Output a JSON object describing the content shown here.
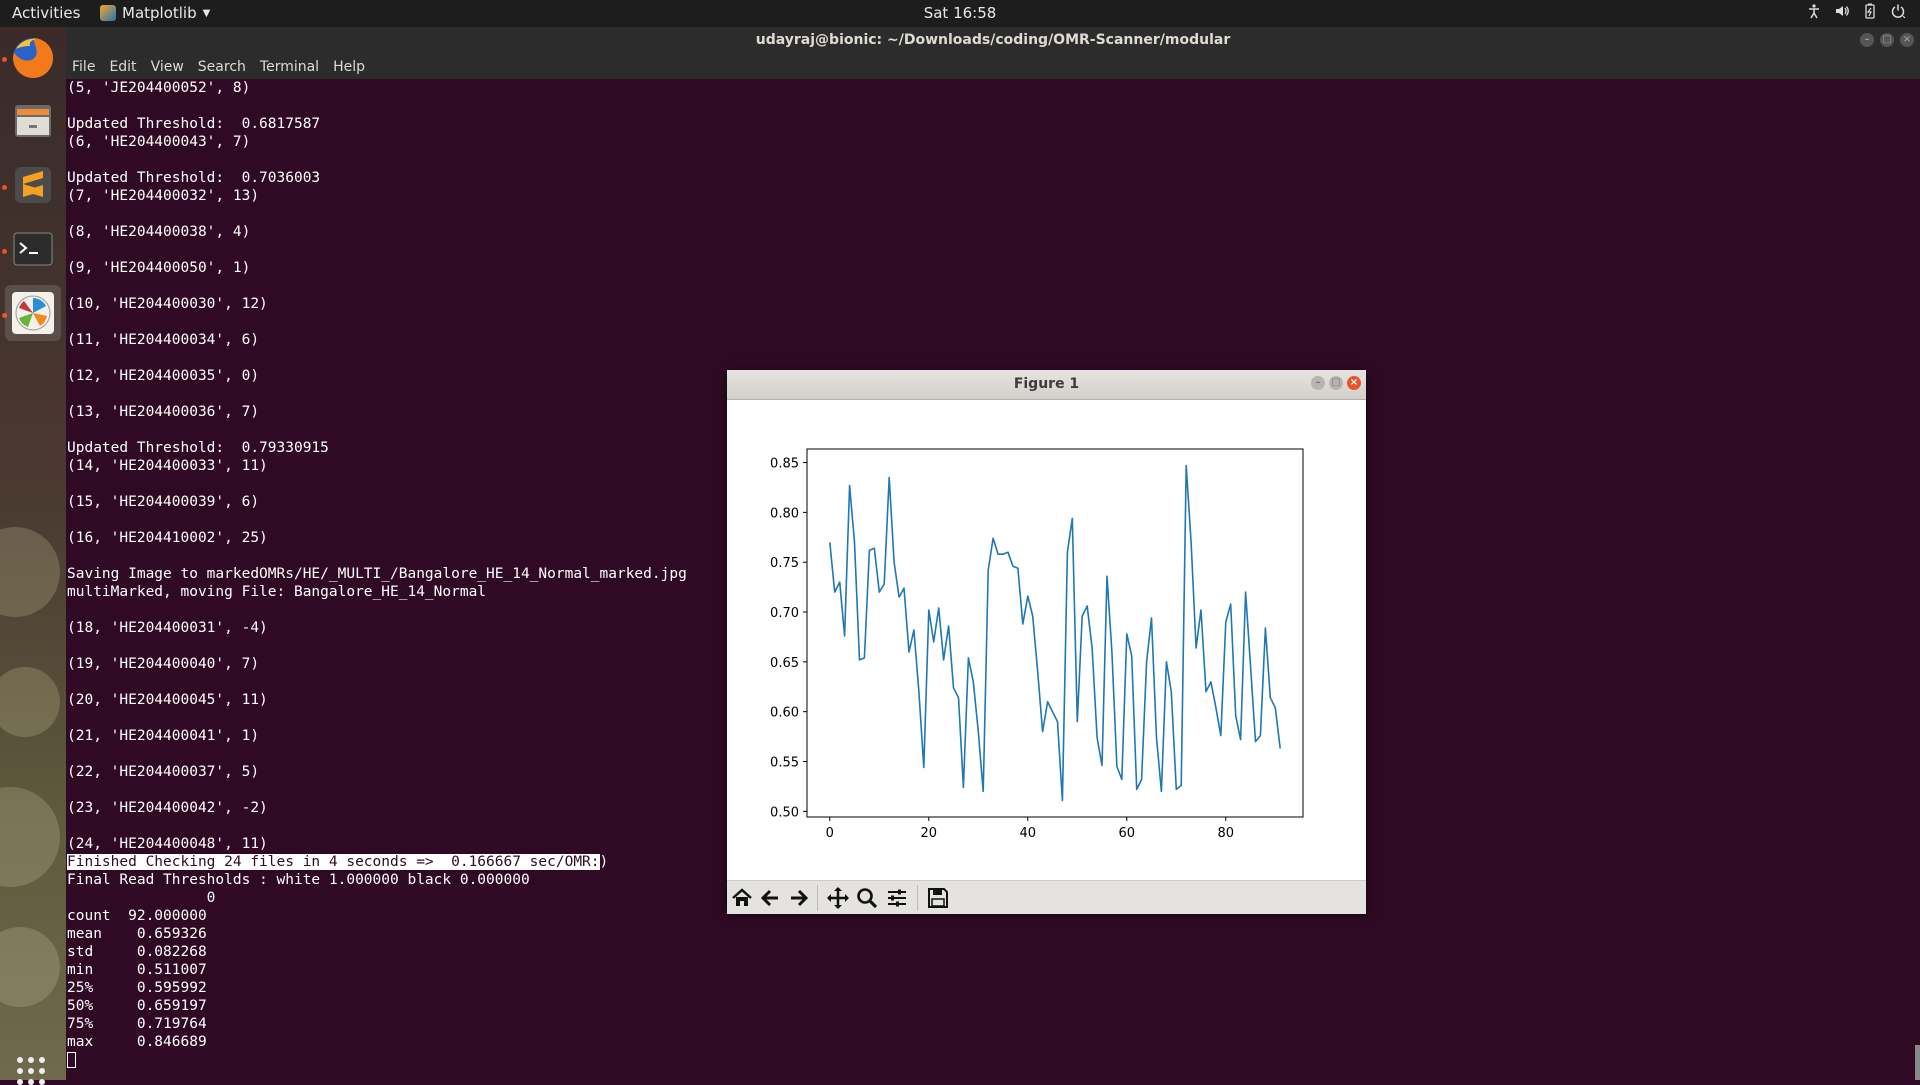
{
  "topbar": {
    "activities": "Activities",
    "app_name": "Matplotlib",
    "clock": "Sat 16:58",
    "tray_icons": [
      "accessibility-icon",
      "volume-icon",
      "battery-icon",
      "power-icon"
    ]
  },
  "dock": {
    "items": [
      "firefox-icon",
      "files-icon",
      "sublime-text-icon",
      "terminal-icon",
      "matplotlib-icon"
    ],
    "apps_button": "show-applications-icon"
  },
  "terminal": {
    "title": "udayraj@bionic: ~/Downloads/coding/OMR-Scanner/modular",
    "menu": [
      "File",
      "Edit",
      "View",
      "Search",
      "Terminal",
      "Help"
    ],
    "lines": [
      "(5, 'JE204400052', 8)",
      "",
      "Updated Threshold:  0.6817587",
      "(6, 'HE204400043', 7)",
      "",
      "Updated Threshold:  0.7036003",
      "(7, 'HE204400032', 13)",
      "",
      "(8, 'HE204400038', 4)",
      "",
      "(9, 'HE204400050', 1)",
      "",
      "(10, 'HE204400030', 12)",
      "",
      "(11, 'HE204400034', 6)",
      "",
      "(12, 'HE204400035', 0)",
      "",
      "(13, 'HE204400036', 7)",
      "",
      "Updated Threshold:  0.79330915",
      "(14, 'HE204400033', 11)",
      "",
      "(15, 'HE204400039', 6)",
      "",
      "(16, 'HE204410002', 25)",
      "",
      "Saving Image to markedOMRs/HE/_MULTI_/Bangalore_HE_14_Normal_marked.jpg",
      "multiMarked, moving File: Bangalore_HE_14_Normal",
      "",
      "(18, 'HE204400031', -4)",
      "",
      "(19, 'HE204400040', 7)",
      "",
      "(20, 'HE204400045', 11)",
      "",
      "(21, 'HE204400041', 1)",
      "",
      "(22, 'HE204400037', 5)",
      "",
      "(23, 'HE204400042', -2)",
      "",
      "(24, 'HE204400048', 11)"
    ],
    "highlight_line": "Finished Checking 24 files in 4 seconds =>  0.166667 sec/OMR:",
    "highlight_tail": ")",
    "after_lines": [
      "Final Read Thresholds : white 1.000000 black 0.000000",
      "                0",
      "count  92.000000",
      "mean    0.659326",
      "std     0.082268",
      "min     0.511007",
      "25%     0.595992",
      "50%     0.659197",
      "75%     0.719764",
      "max     0.846689"
    ]
  },
  "figure": {
    "title": "Figure 1",
    "toolbar": [
      "home-icon",
      "back-icon",
      "forward-icon",
      "pan-icon",
      "zoom-icon",
      "configure-subplots-icon",
      "save-icon"
    ]
  },
  "chart_data": {
    "type": "line",
    "title": "",
    "xlabel": "",
    "ylabel": "",
    "xlim": [
      -4.6,
      95.6
    ],
    "ylim": [
      0.4943,
      0.8636
    ],
    "xticks": [
      0,
      20,
      40,
      60,
      80
    ],
    "yticks": [
      0.5,
      0.55,
      0.6,
      0.65,
      0.7,
      0.75,
      0.8,
      0.85
    ],
    "ytick_labels": [
      "0.50",
      "0.55",
      "0.60",
      "0.65",
      "0.70",
      "0.75",
      "0.80",
      "0.85"
    ],
    "grid": false,
    "line_color": "#1f77b4",
    "series": [
      {
        "values": [
          0.77,
          0.72,
          0.73,
          0.676,
          0.827,
          0.77,
          0.652,
          0.654,
          0.762,
          0.764,
          0.72,
          0.728,
          0.835,
          0.75,
          0.715,
          0.724,
          0.66,
          0.682,
          0.62,
          0.544,
          0.702,
          0.67,
          0.704,
          0.652,
          0.686,
          0.624,
          0.614,
          0.524,
          0.654,
          0.63,
          0.58,
          0.52,
          0.742,
          0.774,
          0.758,
          0.758,
          0.76,
          0.746,
          0.744,
          0.688,
          0.716,
          0.696,
          0.64,
          0.58,
          0.61,
          0.6,
          0.59,
          0.511,
          0.76,
          0.794,
          0.59,
          0.696,
          0.706,
          0.664,
          0.574,
          0.546,
          0.736,
          0.66,
          0.545,
          0.532,
          0.678,
          0.656,
          0.522,
          0.532,
          0.65,
          0.694,
          0.574,
          0.52,
          0.65,
          0.62,
          0.522,
          0.526,
          0.847,
          0.77,
          0.664,
          0.702,
          0.62,
          0.63,
          0.604,
          0.576,
          0.69,
          0.708,
          0.596,
          0.572,
          0.72,
          0.646,
          0.57,
          0.576,
          0.684,
          0.614,
          0.604,
          0.563
        ]
      }
    ]
  }
}
